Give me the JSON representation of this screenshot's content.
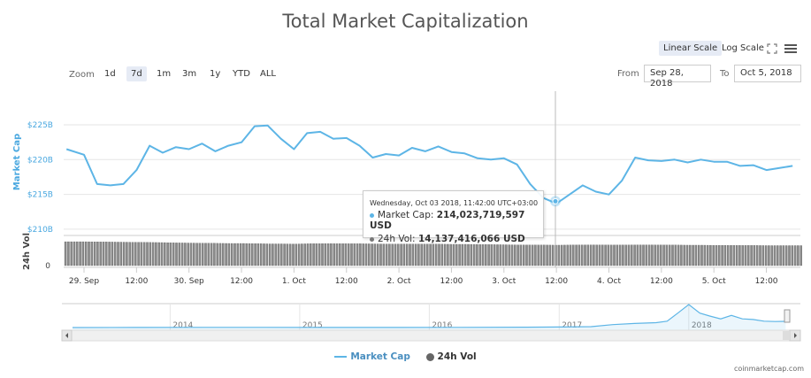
{
  "header": {
    "title": "Total Market Capitalization"
  },
  "toolbar": {
    "linear_scale": "Linear Scale",
    "log_scale": "Log Scale",
    "fullscreen_icon": "expand-icon",
    "menu_icon": "hamburger-menu-icon",
    "zoom_label": "Zoom",
    "zoom_buttons": [
      "1d",
      "7d",
      "1m",
      "3m",
      "1y",
      "YTD",
      "ALL"
    ],
    "zoom_selected": "7d",
    "from_label": "From",
    "from_value": "Sep 28, 2018",
    "to_label": "To",
    "to_value": "Oct 5, 2018"
  },
  "colors": {
    "market_cap": "#5db5e6",
    "volume": "#888888",
    "axis_label": "#4aa8e0"
  },
  "tooltip": {
    "time": "Wednesday, Oct 03 2018, 11:42:00 UTC+03:00",
    "market_cap_label": "Market Cap:",
    "market_cap_value": "214,023,719,597 USD",
    "volume_label": "24h Vol:",
    "volume_value": "14,137,416,066 USD"
  },
  "legend": {
    "market_cap": "Market Cap",
    "volume": "24h Vol"
  },
  "credit": "coinmarketcap.com",
  "chart_data": [
    {
      "type": "line",
      "ylabel": "Market Cap",
      "y_unit": "USD billions",
      "ylim": [
        210,
        225
      ],
      "yticks": [
        "$225B",
        "$220B",
        "$215B",
        "$210B"
      ],
      "xticks": [
        "29. Sep",
        "12:00",
        "30. Sep",
        "12:00",
        "1. Oct",
        "12:00",
        "2. Oct",
        "12:00",
        "3. Oct",
        "12:00",
        "4. Oct",
        "12:00",
        "5. Oct",
        "12:00"
      ],
      "grid": true,
      "x_start": "2018-09-28T20:00",
      "x_step_hours": 3,
      "first_point": {
        "x": "2018-09-28T20:00",
        "y": 221.5
      },
      "series": [
        {
          "name": "Market Cap",
          "x_from": "2018-09-29T00:00",
          "values": [
            220.7,
            216.5,
            216.3,
            216.5,
            218.5,
            222,
            221,
            221.8,
            221.5,
            222.3,
            221.2,
            222,
            222.5,
            224.8,
            224.9,
            223,
            221.5,
            223.8,
            224,
            223,
            223.1,
            222,
            220.3,
            220.8,
            220.6,
            221.7,
            221.2,
            221.9,
            221.1,
            220.9,
            220.2,
            220,
            220.2,
            219.3,
            216.5,
            214.5,
            213.7,
            215,
            216.3,
            215.4,
            215,
            217,
            220.3,
            219.9,
            219.8,
            220,
            219.6,
            220,
            219.7,
            219.7,
            219.1,
            219.2,
            218.5,
            218.8,
            219.1
          ]
        }
      ]
    },
    {
      "type": "bar",
      "ylabel": "24h Vol",
      "yticks": [
        "0"
      ],
      "y_unit": "USD billions",
      "series": [
        {
          "name": "24h Vol",
          "x_from": "2018-09-29T00:00",
          "values": [
            16.5,
            16.4,
            16.3,
            16.2,
            16.1,
            16.0,
            15.9,
            15.7,
            15.6,
            15.5,
            15.4,
            15.3,
            15.3,
            15.2,
            15.0,
            15.0,
            14.9,
            15.1,
            15.2,
            15.2,
            15.1,
            15.1,
            15.0,
            14.9,
            14.9,
            14.9,
            14.8,
            14.8,
            14.7,
            14.7,
            14.6,
            14.5,
            14.4,
            14.3,
            14.2,
            14.2,
            14.1,
            14.2,
            14.3,
            14.3,
            14.2,
            14.2,
            14.3,
            14.3,
            14.2,
            14.2,
            14.1,
            14.1,
            14.0,
            14.0,
            13.9,
            13.9,
            13.8,
            13.8,
            13.8
          ]
        }
      ]
    },
    {
      "type": "area",
      "role": "navigator",
      "xticks": [
        "2014",
        "2015",
        "2016",
        "2017",
        "2018"
      ],
      "x": [
        "2013-04",
        "2013-10",
        "2014-04",
        "2014-10",
        "2015-04",
        "2015-10",
        "2016-04",
        "2016-10",
        "2017-01",
        "2017-04",
        "2017-06",
        "2017-08",
        "2017-10",
        "2017-11",
        "2017-12",
        "2018-01",
        "2018-02",
        "2018-03",
        "2018-04",
        "2018-05",
        "2018-06",
        "2018-07",
        "2018-08",
        "2018-09",
        "2018-10"
      ],
      "values": [
        1.5,
        2,
        7,
        6,
        4,
        4,
        7,
        13,
        18,
        30,
        100,
        140,
        170,
        220,
        500,
        800,
        500,
        400,
        300,
        420,
        300,
        280,
        220,
        210,
        215
      ]
    }
  ]
}
